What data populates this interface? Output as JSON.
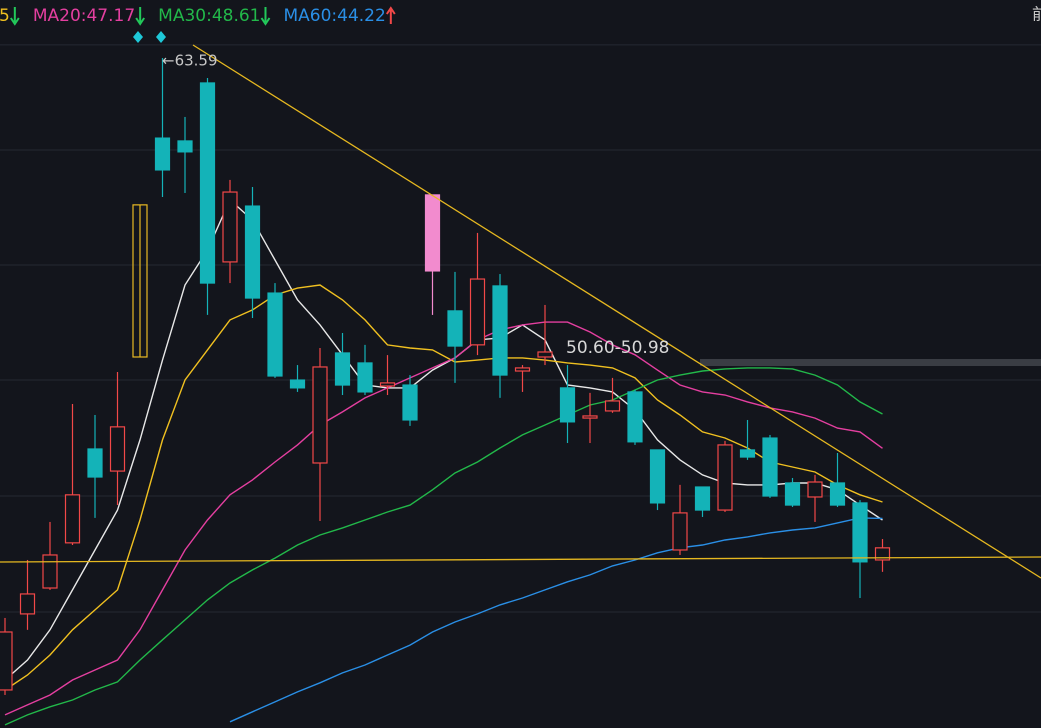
{
  "chart_data": {
    "type": "candlestick",
    "ylim": [
      35.4,
      66.03
    ],
    "gridlines": [
      64.14,
      59.72,
      54.88,
      50.04,
      45.16,
      40.28
    ],
    "up_color": "#f24848",
    "down_color": "#14b3b8",
    "highlight": [
      {
        "index": 6,
        "color": "#e8b923",
        "fill": "none"
      },
      {
        "index": 19,
        "color": "#f28bce",
        "fill": "#f28bce"
      }
    ],
    "candles": [
      {
        "open": 37.0,
        "high": 40.03,
        "low": 36.79,
        "close": 39.44
      },
      {
        "open": 40.2,
        "high": 42.47,
        "low": 39.53,
        "close": 41.04
      },
      {
        "open": 41.29,
        "high": 44.07,
        "low": 41.21,
        "close": 42.68
      },
      {
        "open": 43.19,
        "high": 49.03,
        "low": 43.1,
        "close": 45.21
      },
      {
        "open": 47.14,
        "high": 48.57,
        "low": 44.24,
        "close": 45.96
      },
      {
        "open": 46.21,
        "high": 50.38,
        "low": 44.78,
        "close": 48.07
      },
      {
        "open": 51.01,
        "high": 57.41,
        "low": 51.01,
        "close": 57.41
      },
      {
        "open": 60.22,
        "high": 63.59,
        "low": 57.74,
        "close": 58.88
      },
      {
        "open": 60.1,
        "high": 61.11,
        "low": 57.91,
        "close": 59.64
      },
      {
        "open": 62.54,
        "high": 62.75,
        "low": 52.78,
        "close": 54.12
      },
      {
        "open": 55.01,
        "high": 58.46,
        "low": 54.12,
        "close": 57.95
      },
      {
        "open": 57.36,
        "high": 58.16,
        "low": 52.65,
        "close": 53.49
      },
      {
        "open": 53.7,
        "high": 54.12,
        "low": 50.13,
        "close": 50.21
      },
      {
        "open": 50.04,
        "high": 50.67,
        "low": 49.54,
        "close": 49.71
      },
      {
        "open": 46.55,
        "high": 51.39,
        "low": 44.11,
        "close": 50.59
      },
      {
        "open": 51.18,
        "high": 52.02,
        "low": 49.41,
        "close": 49.83
      },
      {
        "open": 50.76,
        "high": 51.52,
        "low": 49.41,
        "close": 49.54
      },
      {
        "open": 49.79,
        "high": 51.09,
        "low": 49.41,
        "close": 49.92
      },
      {
        "open": 49.83,
        "high": 50.25,
        "low": 48.11,
        "close": 48.36
      },
      {
        "open": 54.63,
        "high": 57.83,
        "low": 52.78,
        "close": 57.83
      },
      {
        "open": 52.95,
        "high": 54.59,
        "low": 49.92,
        "close": 51.47
      },
      {
        "open": 51.52,
        "high": 56.23,
        "low": 51.09,
        "close": 54.29
      },
      {
        "open": 54.0,
        "high": 54.5,
        "low": 49.29,
        "close": 50.25
      },
      {
        "open": 50.42,
        "high": 50.67,
        "low": 49.54,
        "close": 50.55
      },
      {
        "open": 51.01,
        "high": 53.2,
        "low": 50.67,
        "close": 51.22
      },
      {
        "open": 49.71,
        "high": 50.67,
        "low": 47.39,
        "close": 48.28
      },
      {
        "open": 48.44,
        "high": 49.5,
        "low": 47.39,
        "close": 48.53
      },
      {
        "open": 48.74,
        "high": 50.13,
        "low": 48.66,
        "close": 49.16
      },
      {
        "open": 49.54,
        "high": 49.62,
        "low": 47.31,
        "close": 47.44
      },
      {
        "open": 47.1,
        "high": 47.1,
        "low": 44.57,
        "close": 44.87
      },
      {
        "open": 42.89,
        "high": 45.63,
        "low": 42.68,
        "close": 44.45
      },
      {
        "open": 45.54,
        "high": 45.54,
        "low": 44.28,
        "close": 44.57
      },
      {
        "open": 44.57,
        "high": 47.48,
        "low": 44.49,
        "close": 47.31
      },
      {
        "open": 47.1,
        "high": 48.36,
        "low": 46.68,
        "close": 46.8
      },
      {
        "open": 47.6,
        "high": 47.73,
        "low": 45.08,
        "close": 45.16
      },
      {
        "open": 45.71,
        "high": 45.92,
        "low": 44.7,
        "close": 44.78
      },
      {
        "open": 45.12,
        "high": 46.05,
        "low": 44.07,
        "close": 45.75
      },
      {
        "open": 45.71,
        "high": 46.97,
        "low": 44.7,
        "close": 44.78
      },
      {
        "open": 44.87,
        "high": 44.99,
        "low": 40.87,
        "close": 42.39
      },
      {
        "open": 42.47,
        "high": 43.35,
        "low": 41.97,
        "close": 42.98
      }
    ],
    "series": [
      {
        "color": "#e8e8e8",
        "values": [
          37.42,
          38.26,
          39.53,
          41.21,
          42.89,
          44.57,
          47.52,
          50.88,
          54.04,
          55.51,
          57.62,
          56.77,
          55.09,
          53.41,
          52.36,
          51.1,
          49.83,
          49.71,
          49.71,
          50.46,
          50.97,
          51.73,
          51.81,
          52.36,
          51.73,
          49.83,
          49.71,
          49.54,
          48.78,
          47.52,
          46.68,
          46.05,
          45.71,
          45.63,
          45.63,
          45.71,
          45.71,
          45.42,
          44.78,
          44.15
        ]
      },
      {
        "color": "#f0c020",
        "values": [
          37.0,
          37.63,
          38.47,
          39.53,
          40.37,
          41.21,
          44.15,
          47.52,
          50.04,
          51.31,
          52.57,
          52.99,
          53.62,
          53.91,
          54.04,
          53.41,
          52.57,
          51.52,
          51.39,
          51.31,
          50.8,
          50.88,
          50.97,
          50.97,
          50.88,
          50.76,
          50.67,
          50.55,
          50.13,
          49.2,
          48.57,
          47.86,
          47.6,
          47.18,
          46.59,
          46.38,
          46.17,
          45.63,
          45.21,
          44.91
        ]
      },
      {
        "name": "MA20",
        "color": "#e43fa0",
        "values": [
          35.95,
          36.37,
          36.79,
          37.42,
          37.84,
          38.26,
          39.53,
          41.21,
          42.89,
          44.15,
          45.21,
          45.84,
          46.59,
          47.31,
          48.15,
          48.7,
          49.29,
          49.71,
          50.13,
          50.55,
          50.97,
          51.73,
          52.15,
          52.36,
          52.48,
          52.48,
          52.06,
          51.52,
          51.1,
          50.46,
          49.83,
          49.54,
          49.41,
          49.12,
          48.87,
          48.7,
          48.44,
          48.02,
          47.86,
          47.17
        ]
      },
      {
        "name": "MA30",
        "color": "#22b84a",
        "values": [
          35.53,
          35.95,
          36.29,
          36.58,
          37.0,
          37.34,
          38.26,
          39.11,
          39.95,
          40.79,
          41.5,
          42.05,
          42.55,
          43.1,
          43.52,
          43.82,
          44.15,
          44.49,
          44.78,
          45.42,
          46.13,
          46.59,
          47.18,
          47.73,
          48.15,
          48.57,
          48.99,
          49.2,
          49.62,
          50.04,
          50.25,
          50.42,
          50.51,
          50.55,
          50.55,
          50.51,
          50.25,
          49.83,
          49.12,
          48.61
        ]
      },
      {
        "name": "MA60",
        "color": "#2a8fe6",
        "values": [
          null,
          null,
          null,
          null,
          null,
          null,
          null,
          null,
          null,
          null,
          35.66,
          36.08,
          36.5,
          36.92,
          37.3,
          37.72,
          38.05,
          38.47,
          38.89,
          39.44,
          39.86,
          40.2,
          40.58,
          40.87,
          41.21,
          41.55,
          41.84,
          42.22,
          42.47,
          42.77,
          42.98,
          43.1,
          43.31,
          43.44,
          43.61,
          43.73,
          43.82,
          44.03,
          44.24,
          44.22
        ]
      }
    ],
    "legend": [
      {
        "text": "5",
        "color": "#f0c020",
        "arrow": "down"
      },
      {
        "text": "MA20:47.17",
        "color": "#e43fa0",
        "arrow": "down"
      },
      {
        "text": "MA30:48.61",
        "color": "#22b84a",
        "arrow": "down"
      },
      {
        "text": "MA60:44.22",
        "color": "#2a8fe6",
        "arrow": "up"
      }
    ],
    "corner_text": "前",
    "annotations": {
      "high": "←63.59",
      "zone": "50.60-50.98"
    }
  }
}
